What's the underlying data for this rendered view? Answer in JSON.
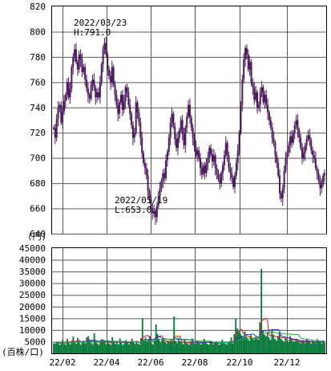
{
  "chart_data": [
    {
      "type": "candlestick",
      "unit_label": "(円)",
      "ylim": [
        640,
        820
      ],
      "y_ticks": [
        "820",
        "800",
        "780",
        "760",
        "740",
        "720",
        "700",
        "680",
        "660",
        "640"
      ],
      "x_ticks": [
        "22/02",
        "22/04",
        "22/06",
        "22/08",
        "22/10",
        "22/12"
      ],
      "grid": true,
      "colors": {
        "candle": "#4b1a5e",
        "grid": "#5a5a5a",
        "frame": "#000000"
      },
      "annotations": {
        "high": {
          "date": "2022/03/23",
          "label": "H:791.0",
          "value": 791.0
        },
        "low": {
          "date": "2022/05/19",
          "label": "L:653.0",
          "value": 653.0
        }
      },
      "series": [
        {
          "values": [
            724,
            716,
            731,
            740,
            742,
            728,
            737,
            745,
            750,
            760,
            748,
            755,
            772,
            780,
            786,
            776,
            770,
            782,
            778,
            768,
            772,
            762,
            755,
            750,
            747,
            758,
            762,
            756,
            748,
            752,
            748,
            760,
            774,
            786,
            791,
            782,
            770,
            765,
            760,
            772,
            758,
            750,
            742,
            735,
            744,
            750,
            738,
            745,
            756,
            752,
            742,
            735,
            726,
            716,
            720,
            744,
            736,
            728,
            716,
            704,
            696,
            692,
            686,
            674,
            668,
            660,
            656,
            658,
            653,
            662,
            670,
            676,
            682,
            688,
            684,
            698,
            705,
            716,
            728,
            735,
            725,
            715,
            708,
            716,
            722,
            730,
            719,
            710,
            724,
            733,
            742,
            732,
            724,
            716,
            709,
            702,
            706,
            700,
            692,
            687,
            694,
            688,
            696,
            700,
            708,
            703,
            697,
            702,
            692,
            687,
            683,
            680,
            688,
            694,
            702,
            712,
            702,
            692,
            688,
            684,
            677,
            686,
            696,
            706,
            720,
            742,
            762,
            778,
            787,
            782,
            770,
            776,
            760,
            756,
            746,
            752,
            740,
            742,
            752,
            756,
            744,
            750,
            742,
            736,
            730,
            724,
            716,
            712,
            702,
            696,
            686,
            672,
            668,
            676,
            690,
            700,
            704,
            710,
            717,
            712,
            720,
            726,
            730,
            722,
            716,
            708,
            700,
            704,
            710,
            715,
            718,
            714,
            706,
            702,
            700,
            692,
            688,
            682,
            676,
            679,
            686,
            688
          ]
        }
      ]
    },
    {
      "type": "bar",
      "unit_label": "(百株/口)",
      "ylim": [
        0,
        45000
      ],
      "y_ticks": [
        "45000",
        "40000",
        "35000",
        "30000",
        "25000",
        "20000",
        "15000",
        "10000",
        "5000"
      ],
      "x_ticks": [
        "22/02",
        "22/04",
        "22/06",
        "22/08",
        "22/10",
        "22/12"
      ],
      "grid": true,
      "colors": {
        "bar": "#0a7a3a",
        "ma_short": "#cc2222",
        "ma_mid": "#2233cc",
        "ma_long": "#22aa44"
      },
      "series": [
        {
          "values": [
            4200,
            3900,
            4800,
            5100,
            3600,
            4400,
            5800,
            4200,
            3700,
            6200,
            4600,
            3900,
            5400,
            7200,
            4800,
            4100,
            6600,
            5200,
            3800,
            4700,
            5400,
            4200,
            6800,
            7400,
            5100,
            4400,
            3900,
            8600,
            5200,
            4300,
            3700,
            4900,
            6100,
            5800,
            4700,
            3900,
            5600,
            4200,
            3700,
            6900,
            4800,
            4100,
            5300,
            3800,
            6400,
            4500,
            3600,
            4200,
            5700,
            4900,
            3900,
            5200,
            6300,
            4700,
            4100,
            5400,
            4200,
            3800,
            6500,
            15000,
            5200,
            6700,
            4800,
            5900,
            7400,
            4300,
            3900,
            5500,
            12400,
            8300,
            6200,
            4500,
            5800,
            6300,
            4900,
            4200,
            5300,
            4600,
            5900,
            4700,
            15800,
            5300,
            4400,
            6100,
            5200,
            4700,
            3900,
            5600,
            4800,
            4200,
            3700,
            5100,
            6400,
            4500,
            3900,
            5200,
            4700,
            4300,
            3800,
            4600,
            6200,
            4800,
            4100,
            3700,
            5300,
            4600,
            3900,
            4400,
            5100,
            4700,
            3600,
            4200,
            5800,
            4900,
            4100,
            3800,
            4500,
            5200,
            6800,
            4300,
            8200,
            14800,
            10600,
            9200,
            8400,
            7600,
            6800,
            9400,
            7200,
            6100,
            5400,
            7800,
            6600,
            5900,
            7100,
            6400,
            5800,
            13300,
            36100,
            9600,
            8100,
            7400,
            8800,
            6900,
            5700,
            10300,
            7600,
            6200,
            5400,
            7100,
            9100,
            6300,
            5600,
            4800,
            6700,
            5400,
            4900,
            7300,
            5800,
            5200,
            4700,
            6100,
            5400,
            4800,
            4300,
            5600,
            4900,
            4400,
            6200,
            5100,
            4700,
            4200,
            5300,
            4800,
            4400,
            6100,
            5400,
            4900,
            4300,
            5600,
            4500
          ]
        }
      ]
    }
  ]
}
